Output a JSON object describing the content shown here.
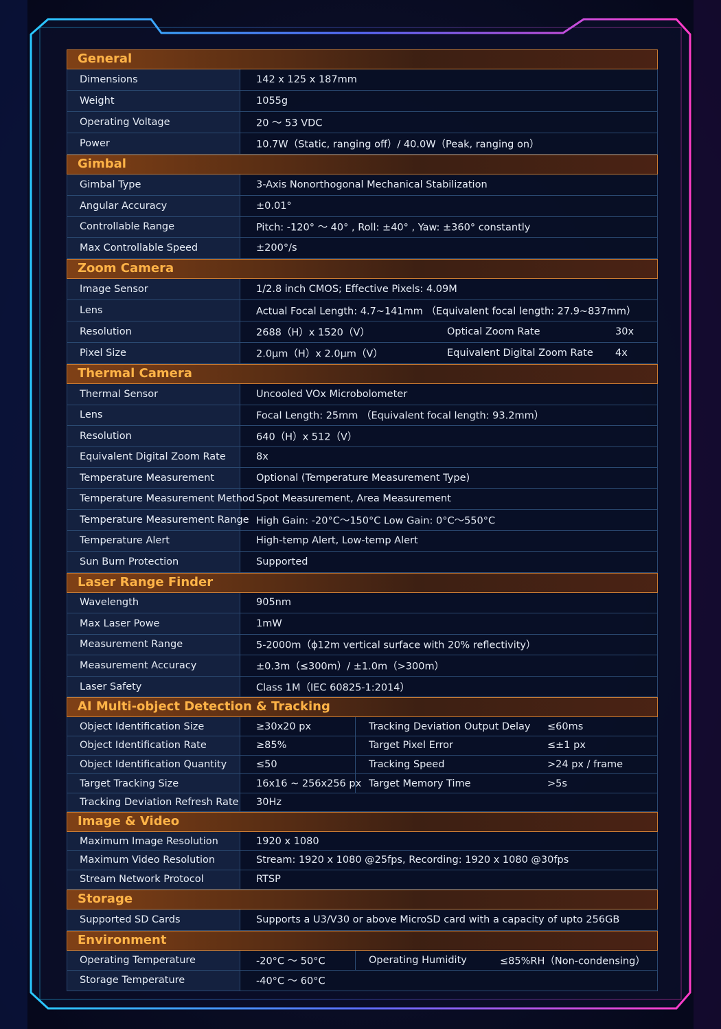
{
  "sections": [
    {
      "title": "General",
      "rows": [
        [
          "Dimensions",
          "142 x 125 x 187mm"
        ],
        [
          "Weight",
          "1055g"
        ],
        [
          "Operating Voltage",
          "20 ～ 53 VDC"
        ],
        [
          "Power",
          "10.7W（Static, ranging off）/ 40.0W（Peak, ranging on）"
        ]
      ]
    },
    {
      "title": "Gimbal",
      "rows": [
        [
          "Gimbal Type",
          "3-Axis Nonorthogonal Mechanical Stabilization"
        ],
        [
          "Angular Accuracy",
          "±0.01°"
        ],
        [
          "Controllable Range",
          "Pitch: -120° ～ 40° ,  Roll: ±40° ,   Yaw: ±360° constantly"
        ],
        [
          "Max Controllable Speed",
          "±200°/s"
        ]
      ]
    },
    {
      "title": "Zoom Camera",
      "rows": [
        [
          "Image Sensor",
          "1/2.8 inch CMOS; Effective Pixels: 4.09M"
        ],
        [
          "Lens",
          "Actual Focal Length: 4.7~141mm （Equivalent focal length: 27.9~837mm）"
        ],
        [
          "Resolution",
          "2688（H）x 1520（V）",
          "Optical Zoom Rate",
          "30x"
        ],
        [
          "Pixel Size",
          "2.0μm（H）x 2.0μm（V）",
          "Equivalent Digital Zoom Rate",
          "4x"
        ]
      ]
    },
    {
      "title": "Thermal Camera",
      "rows": [
        [
          "Thermal Sensor",
          "Uncooled VOx Microbolometer"
        ],
        [
          "Lens",
          "Focal Length:  25mm （Equivalent focal length: 93.2mm）"
        ],
        [
          "Resolution",
          "640（H）x 512（V）"
        ],
        [
          "Equivalent Digital Zoom Rate",
          "8x"
        ],
        [
          "Temperature Measurement",
          "Optional (Temperature Measurement Type)"
        ],
        [
          "Temperature Measurement Method",
          "Spot Measurement, Area Measurement"
        ],
        [
          "Temperature Measurement Range",
          "High Gain: -20°C～150°C   Low Gain: 0°C～550°C"
        ],
        [
          "Temperature Alert",
          "High-temp Alert, Low-temp Alert"
        ],
        [
          "Sun Burn Protection",
          "Supported"
        ]
      ]
    },
    {
      "title": "Laser Range Finder",
      "rows": [
        [
          "Wavelength",
          "905nm"
        ],
        [
          "Max Laser Powe",
          "1mW"
        ],
        [
          "Measurement Range",
          "5-2000m（ϕ12m vertical surface with 20% reflectivity）"
        ],
        [
          "Measurement Accuracy",
          "±0.3m（≤300m）/ ±1.0m（>300m）"
        ],
        [
          "Laser Safety",
          "Class 1M（IEC 60825-1:2014）"
        ]
      ]
    },
    {
      "title": "AI Multi-object Detection & Tracking",
      "rows": [
        [
          "Object Identification Size",
          "≥30x20 px",
          "Tracking Deviation Output Delay",
          "≤60ms"
        ],
        [
          "Object Identification Rate",
          "≥85%",
          "Target Pixel Error",
          "≤±1 px"
        ],
        [
          "Object Identification Quantity",
          "≤50",
          "Tracking Speed",
          ">24 px / frame"
        ],
        [
          "Target Tracking Size",
          "16x16 ~ 256x256 px",
          "Target Memory Time",
          ">5s"
        ],
        [
          "Tracking Deviation Refresh Rate",
          "30Hz"
        ]
      ]
    },
    {
      "title": "Image & Video",
      "rows": [
        [
          "Maximum Image Resolution",
          "1920 x 1080"
        ],
        [
          "Maximum Video Resolution",
          "Stream: 1920 x 1080 @25fps,  Recording: 1920 x 1080 @30fps"
        ],
        [
          "Stream Network Protocol",
          "RTSP"
        ]
      ]
    },
    {
      "title": "Storage",
      "rows": [
        [
          "Supported SD Cards",
          "Supports a U3/V30 or above MicroSD card with a capacity of upto 256GB"
        ]
      ]
    },
    {
      "title": "Environment",
      "rows": [
        [
          "Operating Temperature",
          "-20°C ～ 50°C",
          "Operating Humidity",
          "≤85%RH（Non-condensing）"
        ],
        [
          "Storage Temperature",
          "-40°C ～ 60°C"
        ]
      ]
    }
  ]
}
